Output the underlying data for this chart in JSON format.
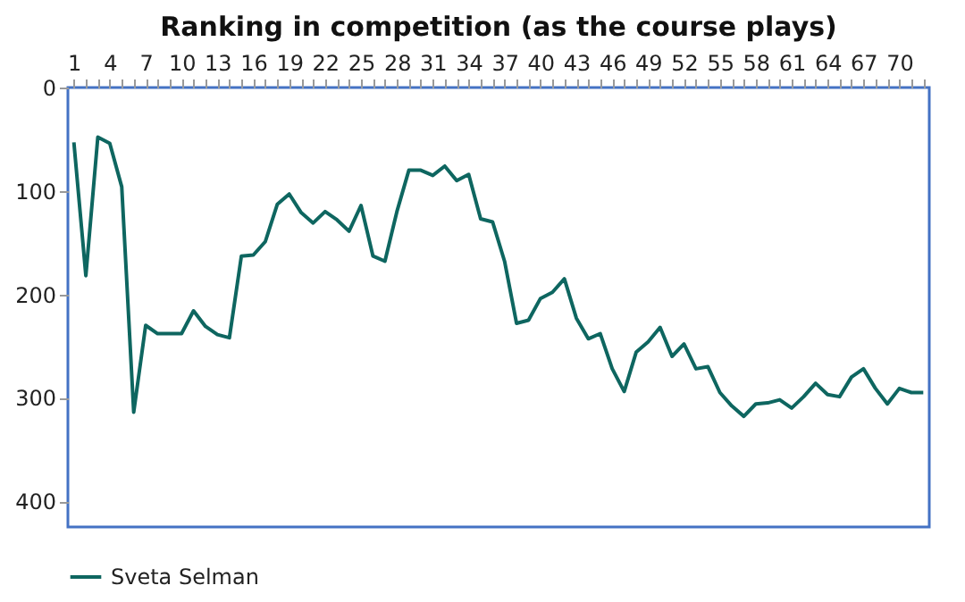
{
  "chart_data": {
    "type": "line",
    "title": "Ranking in competition (as the course plays)",
    "x": [
      1,
      2,
      3,
      4,
      5,
      6,
      7,
      8,
      9,
      10,
      11,
      12,
      13,
      14,
      15,
      16,
      17,
      18,
      19,
      20,
      21,
      22,
      23,
      24,
      25,
      26,
      27,
      28,
      29,
      30,
      31,
      32,
      33,
      34,
      35,
      36,
      37,
      38,
      39,
      40,
      41,
      42,
      43,
      44,
      45,
      46,
      47,
      48,
      49,
      50,
      51,
      52,
      53,
      54,
      55,
      56,
      57,
      58,
      59,
      60,
      61,
      62,
      63,
      64,
      65,
      66,
      67,
      68,
      69,
      70,
      71,
      72
    ],
    "series": [
      {
        "name": "Sveta Selman",
        "color": "#0e6660",
        "values": [
          53,
          182,
          48,
          54,
          96,
          314,
          230,
          238,
          238,
          238,
          216,
          231,
          239,
          242,
          163,
          162,
          149,
          113,
          103,
          121,
          131,
          120,
          128,
          139,
          114,
          163,
          168,
          120,
          80,
          80,
          85,
          76,
          90,
          84,
          127,
          130,
          168,
          228,
          225,
          204,
          198,
          185,
          223,
          243,
          238,
          272,
          294,
          256,
          246,
          232,
          260,
          248,
          272,
          270,
          295,
          308,
          318,
          306,
          305,
          302,
          310,
          299,
          286,
          297,
          299,
          280,
          272,
          291,
          306,
          291,
          295,
          295
        ]
      }
    ],
    "xlim": [
      0.5,
      72.5
    ],
    "xticks": [
      1,
      {
        "value": 2,
        "label": null
      },
      {
        "value": 3,
        "label": null
      },
      4,
      {
        "value": 5,
        "label": null
      },
      {
        "value": 6,
        "label": null
      },
      7,
      {
        "value": 8,
        "label": null
      },
      {
        "value": 9,
        "label": null
      },
      10,
      {
        "value": 11,
        "label": null
      },
      {
        "value": 12,
        "label": null
      },
      13,
      {
        "value": 14,
        "label": null
      },
      {
        "value": 15,
        "label": null
      },
      16,
      {
        "value": 17,
        "label": null
      },
      {
        "value": 18,
        "label": null
      },
      19,
      {
        "value": 20,
        "label": null
      },
      {
        "value": 21,
        "label": null
      },
      22,
      {
        "value": 23,
        "label": null
      },
      {
        "value": 24,
        "label": null
      },
      25,
      {
        "value": 26,
        "label": null
      },
      {
        "value": 27,
        "label": null
      },
      28,
      {
        "value": 29,
        "label": null
      },
      {
        "value": 30,
        "label": null
      },
      31,
      {
        "value": 32,
        "label": null
      },
      {
        "value": 33,
        "label": null
      },
      34,
      {
        "value": 35,
        "label": null
      },
      {
        "value": 36,
        "label": null
      },
      37,
      {
        "value": 38,
        "label": null
      },
      {
        "value": 39,
        "label": null
      },
      40,
      {
        "value": 41,
        "label": null
      },
      {
        "value": 42,
        "label": null
      },
      43,
      {
        "value": 44,
        "label": null
      },
      {
        "value": 45,
        "label": null
      },
      46,
      {
        "value": 47,
        "label": null
      },
      {
        "value": 48,
        "label": null
      },
      49,
      {
        "value": 50,
        "label": null
      },
      {
        "value": 51,
        "label": null
      },
      52,
      {
        "value": 53,
        "label": null
      },
      {
        "value": 54,
        "label": null
      },
      55,
      {
        "value": 56,
        "label": null
      },
      {
        "value": 57,
        "label": null
      },
      58,
      {
        "value": 59,
        "label": null
      },
      {
        "value": 60,
        "label": null
      },
      61,
      {
        "value": 62,
        "label": null
      },
      {
        "value": 63,
        "label": null
      },
      64,
      {
        "value": 65,
        "label": null
      },
      {
        "value": 66,
        "label": null
      },
      67,
      {
        "value": 68,
        "label": null
      },
      {
        "value": 69,
        "label": null
      },
      70,
      {
        "value": 71,
        "label": null
      },
      {
        "value": 72,
        "label": null
      }
    ],
    "ylim": [
      425,
      0
    ],
    "yticks": [
      0,
      100,
      200,
      300,
      400
    ],
    "grid": false,
    "legend": "bottom",
    "marker": "none",
    "line_style": "solid"
  }
}
